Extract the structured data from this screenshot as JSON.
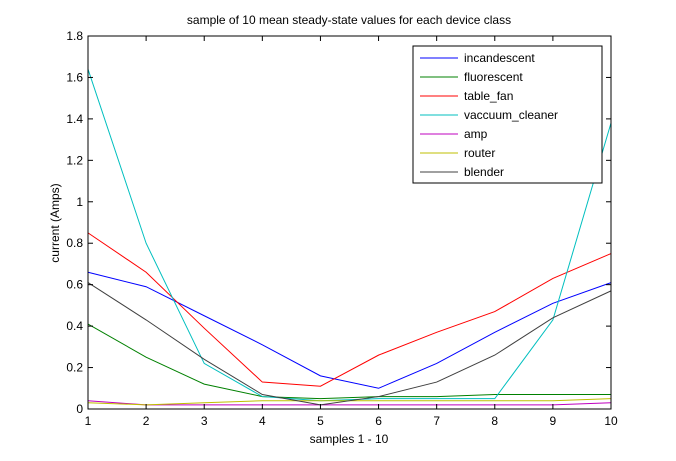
{
  "chart_data": {
    "type": "line",
    "title": "sample of 10 mean steady-state values for each device class",
    "xlabel": "samples 1 - 10",
    "ylabel": "current (Amps)",
    "x": [
      1,
      2,
      3,
      4,
      5,
      6,
      7,
      8,
      9,
      10
    ],
    "xlim": [
      1,
      10
    ],
    "ylim": [
      0,
      1.8
    ],
    "xticks": [
      "1",
      "2",
      "3",
      "4",
      "5",
      "6",
      "7",
      "8",
      "9",
      "10"
    ],
    "yticks": [
      "0",
      "0.2",
      "0.4",
      "0.6",
      "0.8",
      "1",
      "1.2",
      "1.4",
      "1.6",
      "1.8"
    ],
    "grid": false,
    "legend_position": "top-right",
    "series": [
      {
        "name": "incandescent",
        "color": "#0000ff",
        "values": [
          0.66,
          0.59,
          0.45,
          0.31,
          0.16,
          0.1,
          0.22,
          0.37,
          0.51,
          0.61
        ]
      },
      {
        "name": "fluorescent",
        "color": "#008000",
        "values": [
          0.41,
          0.25,
          0.12,
          0.06,
          0.05,
          0.06,
          0.06,
          0.07,
          0.07,
          0.07
        ]
      },
      {
        "name": "table_fan",
        "color": "#ff0000",
        "values": [
          0.85,
          0.66,
          0.39,
          0.13,
          0.11,
          0.26,
          0.37,
          0.47,
          0.63,
          0.75
        ]
      },
      {
        "name": "vaccuum_cleaner",
        "color": "#00bfbf",
        "values": [
          1.64,
          0.8,
          0.22,
          0.06,
          0.04,
          0.05,
          0.05,
          0.05,
          0.43,
          1.38
        ]
      },
      {
        "name": "amp",
        "color": "#bf00bf",
        "values": [
          0.04,
          0.02,
          0.02,
          0.02,
          0.02,
          0.02,
          0.02,
          0.02,
          0.02,
          0.03
        ]
      },
      {
        "name": "router",
        "color": "#bfbf00",
        "values": [
          0.03,
          0.02,
          0.03,
          0.04,
          0.04,
          0.04,
          0.04,
          0.04,
          0.04,
          0.05
        ]
      },
      {
        "name": "blender",
        "color": "#404040",
        "values": [
          0.61,
          0.43,
          0.24,
          0.07,
          0.02,
          0.06,
          0.13,
          0.26,
          0.44,
          0.57
        ]
      }
    ]
  }
}
